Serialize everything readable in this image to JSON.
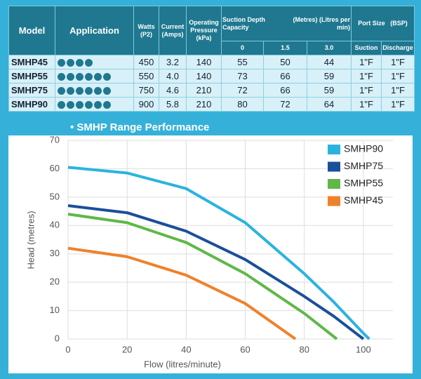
{
  "table": {
    "header": {
      "model": "Model",
      "application": "Application",
      "watts": "Watts (P2)",
      "current": "Current (Amps)",
      "pressure": "Operating Pressure (kPa)",
      "suction_title": "Suction Depth Capacity",
      "suction_units": "(Metres) (Litres per min)",
      "port_title": "Port Size",
      "port_units": "(BSP)",
      "depths": [
        "0",
        "1.5",
        "3.0"
      ],
      "ports": [
        "Suction",
        "Discharge"
      ]
    },
    "rows": [
      [
        "SMHP45",
        "450",
        "3.2",
        "140",
        "55",
        "50",
        "44",
        "1\"F",
        "1\"F"
      ],
      [
        "SMHP55",
        "550",
        "4.0",
        "140",
        "73",
        "66",
        "59",
        "1\"F",
        "1\"F"
      ],
      [
        "SMHP75",
        "750",
        "4.6",
        "210",
        "72",
        "66",
        "59",
        "1\"F",
        "1\"F"
      ],
      [
        "SMHP90",
        "900",
        "5.8",
        "210",
        "80",
        "72",
        "64",
        "1\"F",
        "1\"F"
      ]
    ]
  },
  "chart_data": {
    "type": "line",
    "title": "SMHP Range Performance",
    "xlabel": "Flow (litres/minute)",
    "ylabel": "Head (metres)",
    "xlim": [
      0,
      110
    ],
    "xticks": [
      0,
      20,
      40,
      60,
      80,
      100
    ],
    "ylim": [
      0,
      70
    ],
    "yticks": [
      0,
      10,
      20,
      30,
      40,
      50,
      60,
      70
    ],
    "grid": true,
    "legend": "upper right",
    "series": [
      {
        "name": "SMHP90",
        "color": "#2bb3e0",
        "x": [
          0,
          20,
          40,
          60,
          80,
          90,
          100,
          102
        ],
        "values": [
          60.5,
          58.5,
          53,
          41,
          23,
          13,
          2,
          0
        ]
      },
      {
        "name": "SMHP75",
        "color": "#1a4f9a",
        "x": [
          0,
          20,
          40,
          60,
          80,
          90,
          100
        ],
        "values": [
          47,
          44.5,
          38,
          28,
          15,
          8,
          0
        ]
      },
      {
        "name": "SMHP55",
        "color": "#5fb847",
        "x": [
          0,
          20,
          40,
          60,
          80,
          91
        ],
        "values": [
          44,
          41,
          34,
          23,
          9,
          0
        ]
      },
      {
        "name": "SMHP45",
        "color": "#f0812a",
        "x": [
          0,
          20,
          40,
          60,
          77
        ],
        "values": [
          32,
          29,
          22.5,
          12.5,
          0
        ]
      }
    ]
  }
}
